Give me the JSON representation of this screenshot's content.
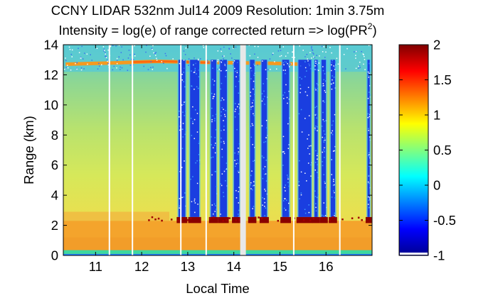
{
  "chart_data": {
    "type": "heatmap",
    "title": "CCNY LIDAR 532nm Jul14 2009 Resolution: 1min 3.75m",
    "subtitle_prefix": "Intensity = log(e) of range corrected return => log(PR",
    "subtitle_sup": "2",
    "subtitle_suffix": ")",
    "xlabel": "Local Time",
    "ylabel": "Range (km)",
    "xlim": [
      10.3,
      17.0
    ],
    "ylim": [
      0,
      14
    ],
    "xticks": [
      11,
      12,
      13,
      14,
      15,
      16
    ],
    "yticks": [
      0,
      2,
      4,
      6,
      8,
      10,
      12,
      14
    ],
    "colorbar": {
      "range": [
        -1,
        2
      ],
      "ticks": [
        -1,
        -0.5,
        0,
        0.5,
        1,
        1.5,
        2
      ],
      "tick_labels": [
        "-1",
        "-0.5",
        "0",
        "0.5",
        "1",
        "1.5",
        "2"
      ],
      "colormap": "jet"
    },
    "features": {
      "boundary_layer_top_km": 2.3,
      "cirrus_layer_km": 12.8,
      "surface_layer_km": 0.2,
      "data_gaps_hours": [
        11.3,
        11.8,
        12.85,
        13.4,
        14.2,
        15.3,
        16.3
      ],
      "clouded_periods_hours": [
        [
          12.8,
          12.95
        ],
        [
          13.05,
          13.25
        ],
        [
          13.5,
          13.62
        ],
        [
          13.7,
          13.85
        ],
        [
          14.0,
          14.12
        ],
        [
          14.35,
          14.45
        ],
        [
          14.6,
          14.72
        ],
        [
          15.05,
          15.2
        ],
        [
          15.4,
          15.68
        ],
        [
          15.75,
          15.82
        ],
        [
          15.9,
          16.0
        ],
        [
          16.1,
          16.2
        ],
        [
          16.9,
          16.95
        ]
      ]
    }
  }
}
